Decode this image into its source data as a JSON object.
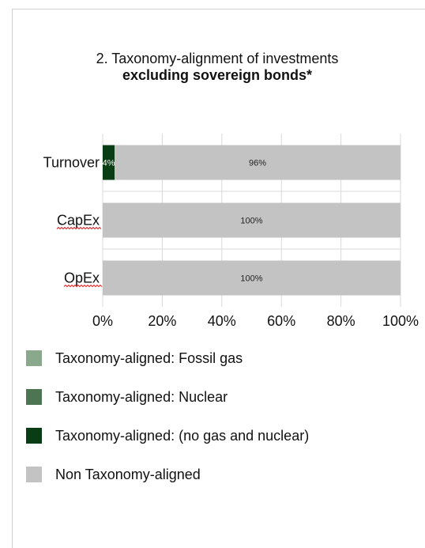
{
  "chart_data": {
    "type": "bar",
    "orientation": "horizontal",
    "stacked": true,
    "title": "2. Taxonomy-alignment of investments",
    "subtitle": "excluding sovereign bonds*",
    "categories": [
      "Turnover",
      "CapEx",
      "OpEx"
    ],
    "series": [
      {
        "name": "Taxonomy-aligned: Fossil gas",
        "values": [
          0,
          0,
          0
        ],
        "color": "#8aa88c"
      },
      {
        "name": "Taxonomy-aligned: Nuclear",
        "values": [
          0,
          0,
          0
        ],
        "color": "#4e7552"
      },
      {
        "name": "Taxonomy-aligned: (no gas and nuclear)",
        "values": [
          4,
          0,
          0
        ],
        "color": "#0b3d14"
      },
      {
        "name": "Non Taxonomy-aligned",
        "values": [
          96,
          100,
          100
        ],
        "color": "#c3c3c3"
      }
    ],
    "data_labels": [
      {
        "category": "Turnover",
        "series": 2,
        "text": "4%"
      },
      {
        "category": "Turnover",
        "series": 3,
        "text": "96%"
      },
      {
        "category": "CapEx",
        "series": 3,
        "text": "100%"
      },
      {
        "category": "OpEx",
        "series": 3,
        "text": "100%"
      }
    ],
    "xlim": [
      0,
      100
    ],
    "x_ticks": [
      "0%",
      "20%",
      "40%",
      "60%",
      "80%",
      "100%"
    ],
    "grid": true,
    "legend_placement": "bottom"
  }
}
